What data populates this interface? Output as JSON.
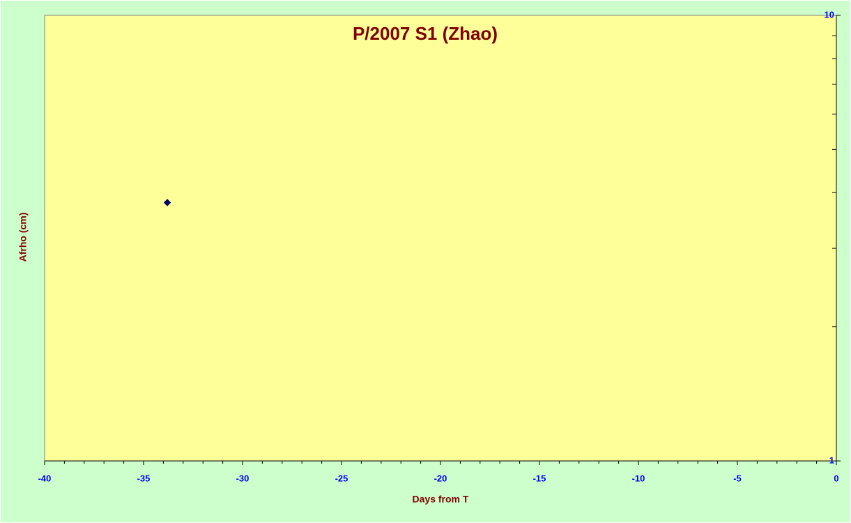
{
  "chart_data": {
    "type": "scatter",
    "title": "P/2007 S1 (Zhao)",
    "x_label": "Days from T",
    "y_label": "Afrho (cm)",
    "x": [
      -33.8
    ],
    "values": [
      3.8
    ],
    "color": "#000080",
    "xlim": [
      -40,
      0
    ],
    "xticks": [
      -40,
      -35,
      -30,
      -25,
      -20,
      -15,
      -10,
      -5,
      0
    ],
    "ylim": [
      1,
      10
    ],
    "yticks": [
      1,
      10
    ],
    "y_scale": "log",
    "y_axis_side": "right"
  }
}
